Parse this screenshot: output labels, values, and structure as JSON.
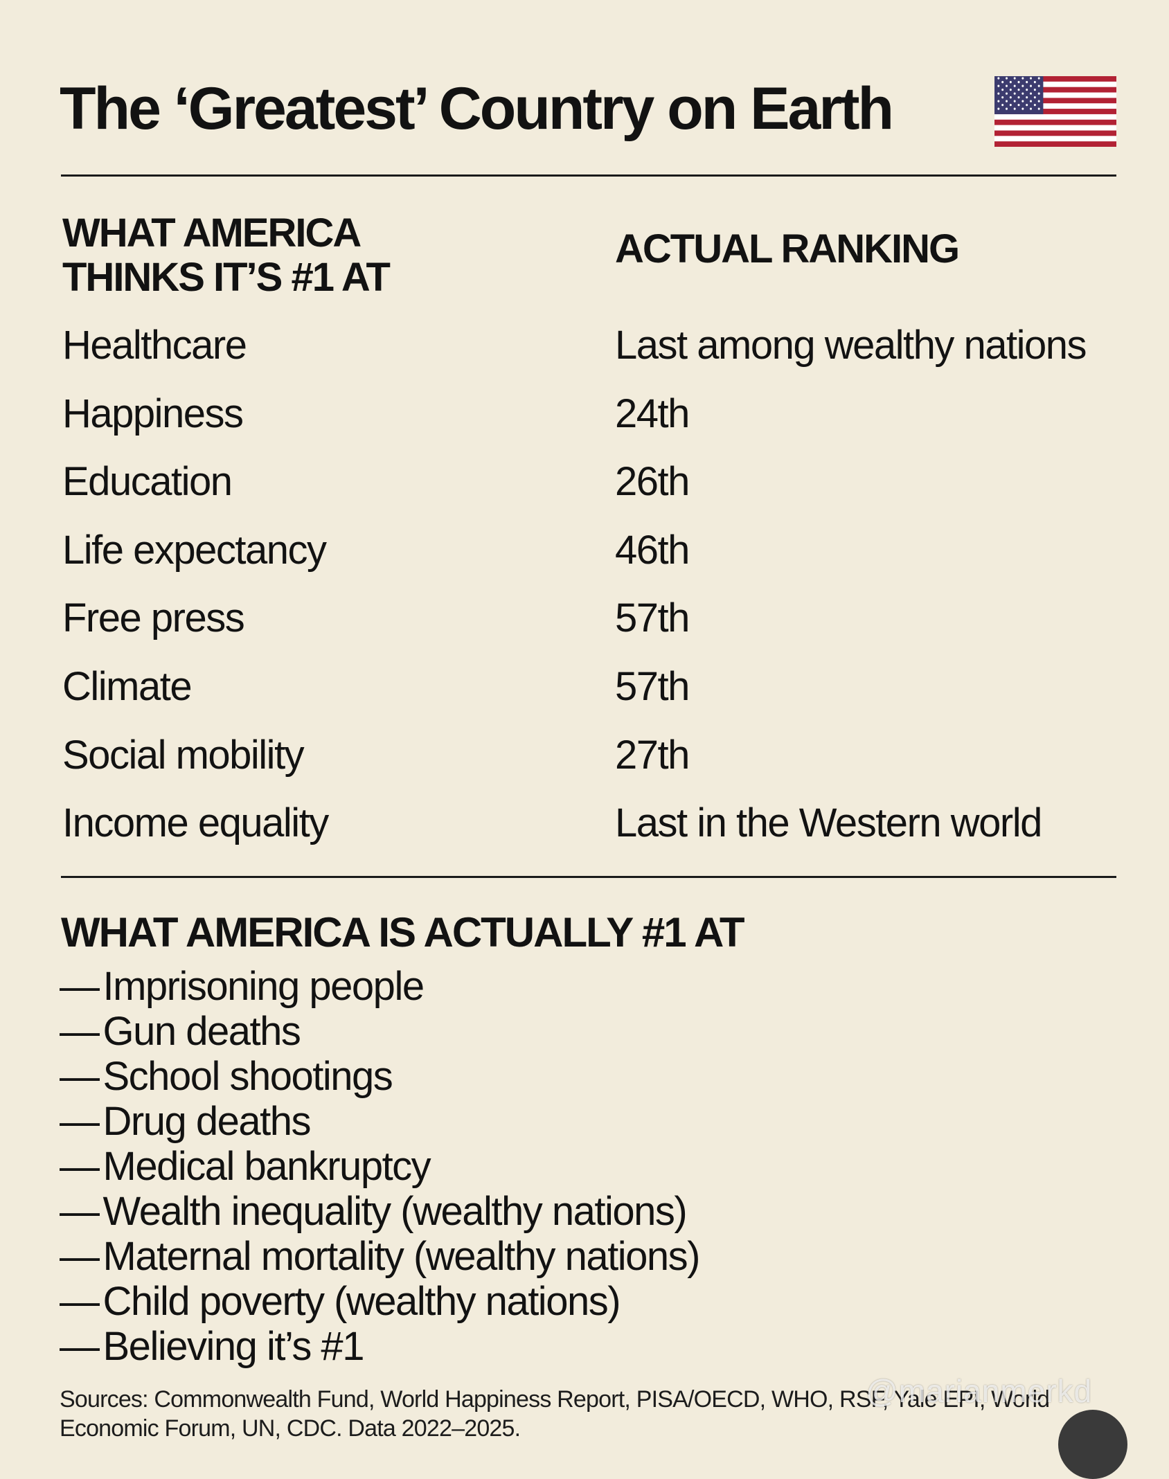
{
  "title": "The ‘Greatest’ Country on Earth",
  "headers": {
    "left": "WHAT AMERICA THINKS IT’S #1 AT",
    "right": "ACTUAL RANKING"
  },
  "rows": [
    {
      "category": "Healthcare",
      "rank": "Last among wealthy nations"
    },
    {
      "category": "Happiness",
      "rank": "24th"
    },
    {
      "category": "Education",
      "rank": "26th"
    },
    {
      "category": "Life expectancy",
      "rank": "46th"
    },
    {
      "category": "Free press",
      "rank": "57th"
    },
    {
      "category": "Climate",
      "rank": "57th"
    },
    {
      "category": "Social mobility",
      "rank": "27th"
    },
    {
      "category": "Income equality",
      "rank": "Last in the Western world"
    }
  ],
  "actual_heading": "WHAT AMERICA IS ACTUALLY #1 AT",
  "dash": "—",
  "actual_items": [
    "Imprisoning people",
    "Gun deaths",
    "School shootings",
    "Drug deaths",
    "Medical bankruptcy",
    "Wealth inequality (wealthy nations)",
    "Maternal mortality (wealthy nations)",
    "Child poverty (wealthy nations)",
    "Believing it’s #1"
  ],
  "sources": "Sources: Commonwealth Fund, World Happiness Report, PISA/OECD, WHO, RSF, Yale EPI, World Economic Forum, UN, CDC. Data 2022–2025.",
  "watermark": "@marianmerkd",
  "colors": {
    "background": "#f2ecdc",
    "text": "#121212",
    "flag_red": "#b22234",
    "flag_blue": "#3c3b6e"
  },
  "icons": {
    "flag": "us-flag-icon",
    "corner": "circle-button-icon"
  }
}
